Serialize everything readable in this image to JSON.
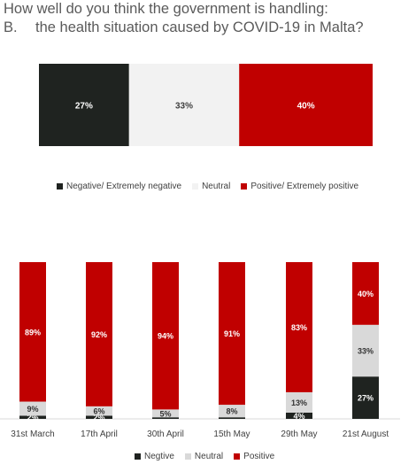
{
  "question": {
    "line1": "How well do you think the government is handling:",
    "line2_letter": "B.",
    "line2_text": "the health situation caused by COVID-19 in Malta?"
  },
  "colors": {
    "negative": "#1f2320",
    "neutral": "#f2f2f2",
    "neutral_trend": "#d9d9d9",
    "positive": "#c00000"
  },
  "chart_data": [
    {
      "type": "bar",
      "orientation": "horizontal-stacked-100",
      "series": [
        {
          "name": "Negative/ Extremely negative",
          "value": 27,
          "label": "27%"
        },
        {
          "name": "Neutral",
          "value": 33,
          "label": "33%"
        },
        {
          "name": "Positive/ Extremely positive",
          "value": 40,
          "label": "40%"
        }
      ],
      "legend": [
        "Negative/ Extremely negative",
        "Neutral",
        "Positive/ Extremely positive"
      ],
      "legend_position": "bottom"
    },
    {
      "type": "bar",
      "orientation": "vertical-stacked-100",
      "categories": [
        "31st March",
        "17th April",
        "30th April",
        "15th May",
        "29th May",
        "21st August"
      ],
      "series": [
        {
          "name": "Negtive",
          "values": [
            2,
            2,
            1,
            1,
            4,
            27
          ],
          "labels": [
            "2%",
            "2%",
            "",
            "",
            "4%",
            "27%"
          ]
        },
        {
          "name": "Neutral",
          "values": [
            9,
            6,
            5,
            8,
            13,
            33
          ],
          "labels": [
            "9%",
            "6%",
            "5%",
            "8%",
            "13%",
            "33%"
          ]
        },
        {
          "name": "Positive",
          "values": [
            89,
            92,
            94,
            91,
            83,
            40
          ],
          "labels": [
            "89%",
            "92%",
            "94%",
            "91%",
            "83%",
            "40%"
          ]
        }
      ],
      "legend": [
        "Negtive",
        "Neutral",
        "Positive"
      ],
      "legend_position": "bottom"
    }
  ]
}
